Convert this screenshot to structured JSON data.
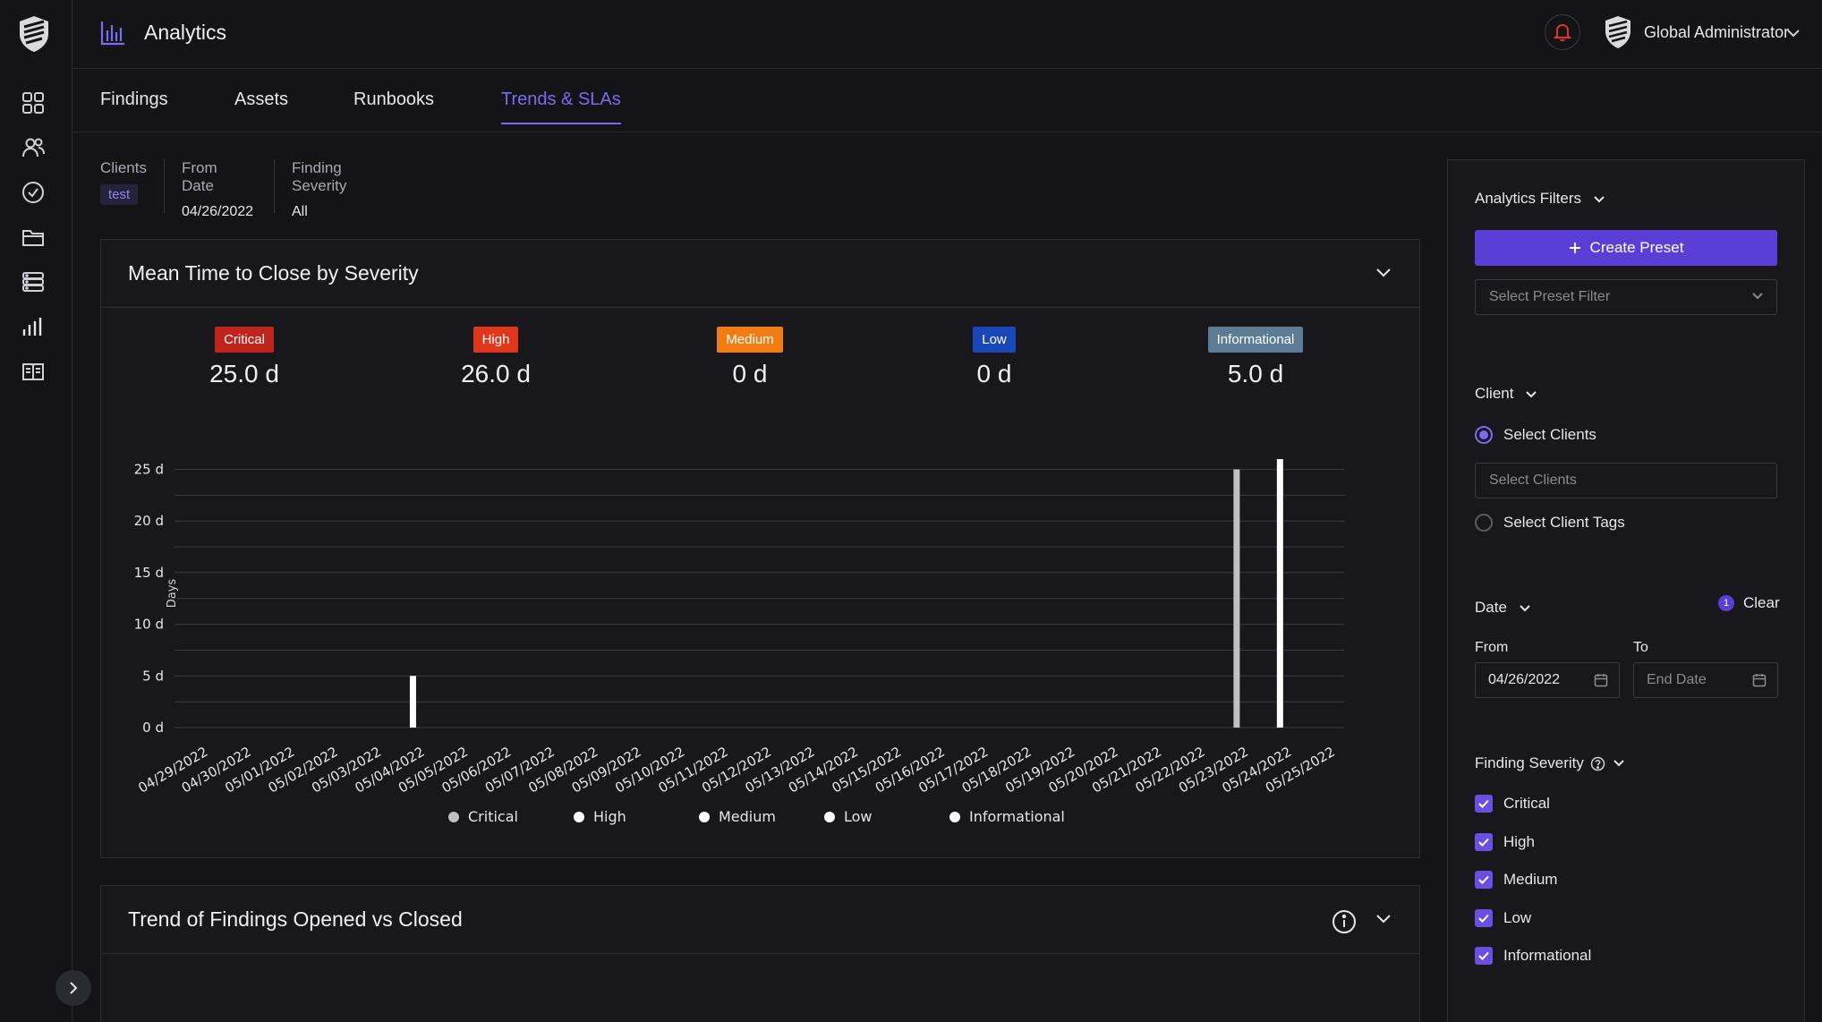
{
  "app": {
    "title": "Analytics"
  },
  "header": {
    "user_name": "Global Administrator"
  },
  "tabs": [
    {
      "label": "Findings",
      "active": false
    },
    {
      "label": "Assets",
      "active": false
    },
    {
      "label": "Runbooks",
      "active": false
    },
    {
      "label": "Trends & SLAs",
      "active": true
    }
  ],
  "summary": {
    "clients_label": "Clients",
    "clients_tag": "test",
    "from_date_label": "From Date",
    "from_date_value": "04/26/2022",
    "severity_label": "Finding Severity",
    "severity_value": "All"
  },
  "mttc_card": {
    "title": "Mean Time to Close by Severity",
    "severities": [
      {
        "label": "Critical",
        "value": "25.0 d",
        "color": "#c0241c"
      },
      {
        "label": "High",
        "value": "26.0 d",
        "color": "#e0361b"
      },
      {
        "label": "Medium",
        "value": "0 d",
        "color": "#f07c12"
      },
      {
        "label": "Low",
        "value": "0 d",
        "color": "#1a47b8"
      },
      {
        "label": "Informational",
        "value": "5.0 d",
        "color": "#5c7c96"
      }
    ]
  },
  "chart_data": {
    "type": "bar",
    "ylabel": "Days",
    "y_unit": "d",
    "ylim": [
      0,
      26
    ],
    "yticks": [
      0,
      5,
      10,
      15,
      20,
      25
    ],
    "grid": true,
    "legend_position": "bottom",
    "categories": [
      "04/29/2022",
      "04/30/2022",
      "05/01/2022",
      "05/02/2022",
      "05/03/2022",
      "05/04/2022",
      "05/05/2022",
      "05/06/2022",
      "05/07/2022",
      "05/08/2022",
      "05/09/2022",
      "05/10/2022",
      "05/11/2022",
      "05/12/2022",
      "05/13/2022",
      "05/14/2022",
      "05/15/2022",
      "05/16/2022",
      "05/17/2022",
      "05/18/2022",
      "05/19/2022",
      "05/20/2022",
      "05/21/2022",
      "05/22/2022",
      "05/23/2022",
      "05/24/2022",
      "05/25/2022"
    ],
    "bars": [
      {
        "date": "05/04/2022",
        "series": "Informational",
        "value": 5,
        "color": "#ffffff"
      },
      {
        "date": "05/23/2022",
        "series": "Critical",
        "value": 25,
        "color": "#bfbfc4"
      },
      {
        "date": "05/24/2022",
        "series": "High",
        "value": 26,
        "color": "#ffffff"
      }
    ],
    "legend": [
      {
        "name": "Critical",
        "color": "#bfbfc4"
      },
      {
        "name": "High",
        "color": "#ffffff"
      },
      {
        "name": "Medium",
        "color": "#ffffff"
      },
      {
        "name": "Low",
        "color": "#ffffff"
      },
      {
        "name": "Informational",
        "color": "#ffffff"
      }
    ]
  },
  "trend_card": {
    "title": "Trend of Findings Opened vs Closed"
  },
  "filters": {
    "title": "Analytics Filters",
    "create_preset": "Create Preset",
    "preset_placeholder": "Select Preset Filter",
    "client_section": "Client",
    "select_clients_radio": "Select Clients",
    "select_clients_placeholder": "Select Clients",
    "select_tags_radio": "Select Client Tags",
    "date_section": "Date",
    "date_count": "1",
    "clear": "Clear",
    "from_label": "From",
    "from_value": "04/26/2022",
    "to_label": "To",
    "to_placeholder": "End Date",
    "severity_section": "Finding Severity",
    "severity_options": [
      "Critical",
      "High",
      "Medium",
      "Low",
      "Informational"
    ]
  }
}
